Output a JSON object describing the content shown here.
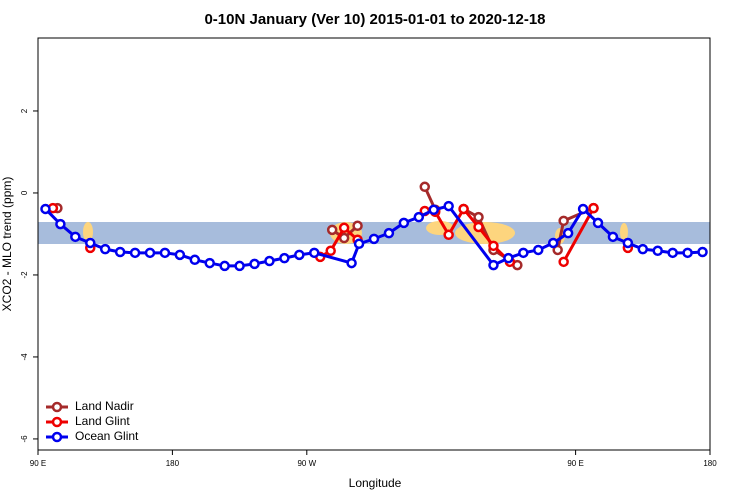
{
  "chart_data": {
    "type": "line",
    "title": "0-10N January (Ver 10)   2015-01-01 to 2020-12-18",
    "x_label": "Longitude",
    "y_label": "XCO2 - MLO trend (ppm)",
    "xlim": [
      90,
      540
    ],
    "ylim": [
      -6.27,
      3.78
    ],
    "xticks": [
      {
        "value": 90,
        "label": "90 E"
      },
      180,
      {
        "value": 270,
        "label": "90 W"
      },
      {
        "value": 450,
        "label": "90 E"
      },
      {
        "value": 540,
        "label": "180"
      }
    ],
    "yticks": [
      -6,
      -4,
      -2,
      0,
      2
    ],
    "legend": "bottom-left",
    "series": [
      {
        "name": "Land Nadir",
        "color": "#a52a2a",
        "x": [
          103,
          null,
          287,
          295,
          304,
          null,
          349,
          356,
          null,
          375,
          385,
          395,
          411,
          null,
          438,
          442,
          462
        ],
        "values": [
          -0.37,
          null,
          -0.9,
          -1.1,
          -0.8,
          null,
          0.15,
          -0.41,
          null,
          -0.39,
          -0.59,
          -1.39,
          -1.76,
          null,
          -1.39,
          -0.68,
          -0.37
        ]
      },
      {
        "name": "Land Glint",
        "color": "#ee0000",
        "x": [
          100,
          null,
          125,
          null,
          279,
          286,
          295,
          304,
          null,
          349,
          356,
          365,
          375,
          385,
          395,
          406,
          null,
          442,
          462,
          null,
          485
        ],
        "values": [
          -0.37,
          null,
          -1.34,
          null,
          -1.56,
          -1.41,
          -0.85,
          -1.14,
          null,
          -0.44,
          -0.46,
          -1.02,
          -0.39,
          -0.83,
          -1.29,
          -1.68,
          null,
          -1.68,
          -0.37,
          null,
          -1.34
        ]
      },
      {
        "name": "Ocean Glint",
        "color": "#0000ee",
        "x": [
          95,
          105,
          115,
          125,
          135,
          145,
          155,
          165,
          175,
          185,
          195,
          205,
          215,
          225,
          235,
          245,
          255,
          265,
          275,
          300,
          305,
          315,
          325,
          335,
          345,
          355,
          365,
          395,
          405,
          415,
          425,
          435,
          445,
          455,
          465,
          475,
          485,
          495,
          505,
          515,
          525,
          535
        ],
        "values": [
          -0.39,
          -0.76,
          -1.07,
          -1.22,
          -1.37,
          -1.44,
          -1.46,
          -1.46,
          -1.46,
          -1.51,
          -1.63,
          -1.71,
          -1.78,
          -1.78,
          -1.73,
          -1.66,
          -1.59,
          -1.51,
          -1.46,
          -1.71,
          -1.24,
          -1.12,
          -0.98,
          -0.73,
          -0.59,
          -0.41,
          -0.32,
          -1.76,
          -1.59,
          -1.46,
          -1.39,
          -1.22,
          -0.98,
          -0.39,
          -0.73,
          -1.07,
          -1.22,
          -1.37,
          -1.41,
          -1.46,
          -1.46,
          -1.44
        ]
      }
    ]
  }
}
